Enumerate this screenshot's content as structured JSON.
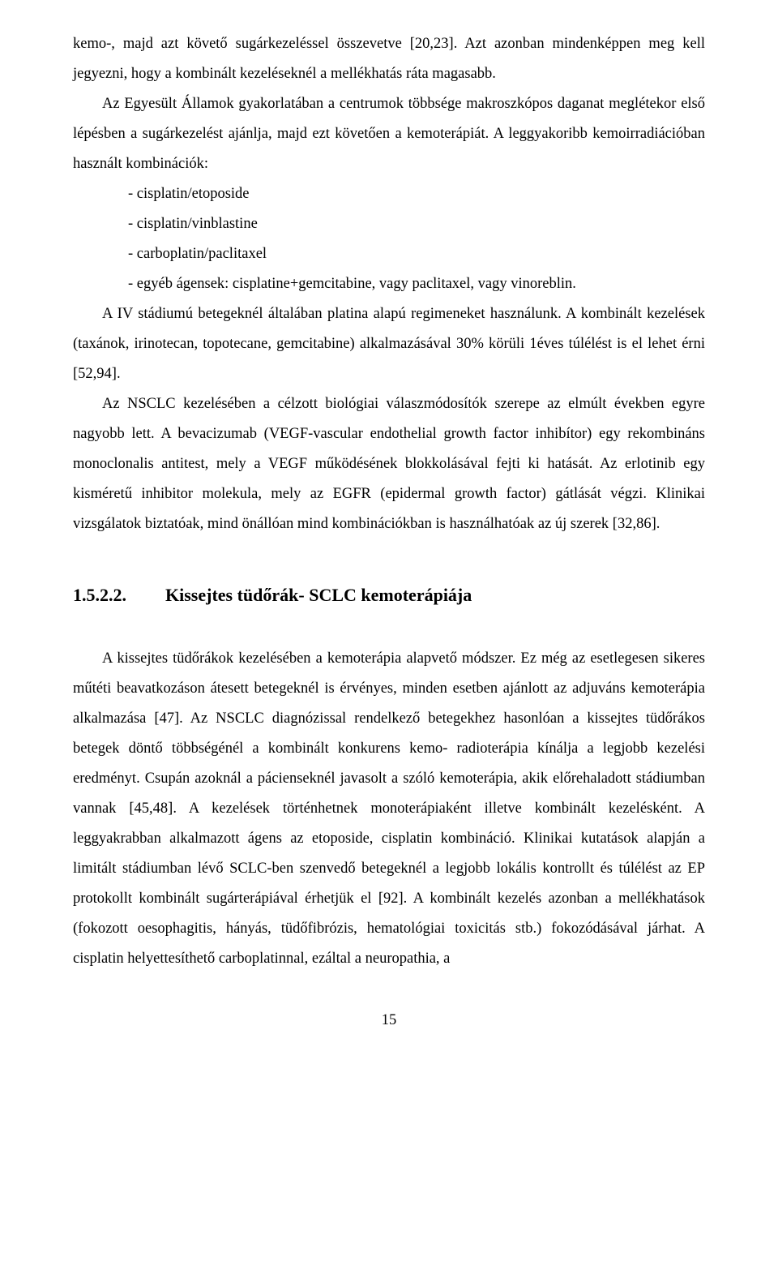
{
  "p1": "kemo-, majd azt követő sugárkezeléssel összevetve [20,23]. Azt azonban mindenképpen meg kell jegyezni, hogy a kombinált kezeléseknél a mellékhatás ráta magasabb.",
  "p2": "Az Egyesült Államok gyakorlatában a centrumok többsége makroszkópos daganat meglétekor első lépésben a sugárkezelést ajánlja, majd ezt követően a kemoterápiát. A leggyakoribb kemoirradiációban használt kombinációk:",
  "li1": "- cisplatin/etoposide",
  "li2": "- cisplatin/vinblastine",
  "li3": "- carboplatin/paclitaxel",
  "li4": "- egyéb ágensek: cisplatine+gemcitabine, vagy paclitaxel, vagy vinoreblin.",
  "p3": "A IV stádiumú betegeknél általában platina alapú regimeneket használunk. A kombinált kezelések (taxánok, irinotecan, topotecane, gemcitabine) alkalmazásával 30% körüli 1éves túlélést is el lehet érni [52,94].",
  "p4": "Az NSCLC kezelésében a célzott biológiai válaszmódosítók szerepe az elmúlt években egyre nagyobb lett. A bevacizumab (VEGF-vascular endothelial growth factor inhibítor) egy rekombináns monoclonalis antitest, mely a VEGF működésének blokkolásával fejti ki hatását. Az erlotinib egy kisméretű inhibitor molekula, mely az EGFR (epidermal growth factor) gátlását végzi. Klinikai vizsgálatok biztatóak, mind önállóan mind kombinációkban is használhatóak az új szerek [32,86].",
  "heading_num": "1.5.2.2.",
  "heading_text": "Kissejtes tüdőrák- SCLC kemoterápiája",
  "p5": "A kissejtes tüdőrákok kezelésében a kemoterápia alapvető módszer. Ez még az esetlegesen sikeres műtéti beavatkozáson átesett betegeknél is érvényes, minden esetben ajánlott az adjuváns kemoterápia alkalmazása [47]. Az NSCLC diagnózissal rendelkező betegekhez hasonlóan a kissejtes tüdőrákos betegek döntő többségénél a kombinált konkurens kemo- radioterápia kínálja a legjobb kezelési eredményt. Csupán azoknál a pácienseknél javasolt a szóló kemoterápia, akik előrehaladott stádiumban vannak [45,48]. A kezelések történhetnek monoterápiaként illetve kombinált kezelésként. A leggyakrabban alkalmazott ágens az etoposide, cisplatin kombináció. Klinikai kutatások alapján a limitált stádiumban lévő SCLC-ben szenvedő betegeknél a legjobb lokális kontrollt és túlélést az EP protokollt kombinált sugárterápiával érhetjük el [92]. A kombinált kezelés azonban a mellékhatások (fokozott oesophagitis, hányás, tüdőfibrózis, hematológiai toxicitás stb.) fokozódásával járhat. A cisplatin helyettesíthető carboplatinnal, ezáltal a neuropathia, a",
  "page_number": "15"
}
